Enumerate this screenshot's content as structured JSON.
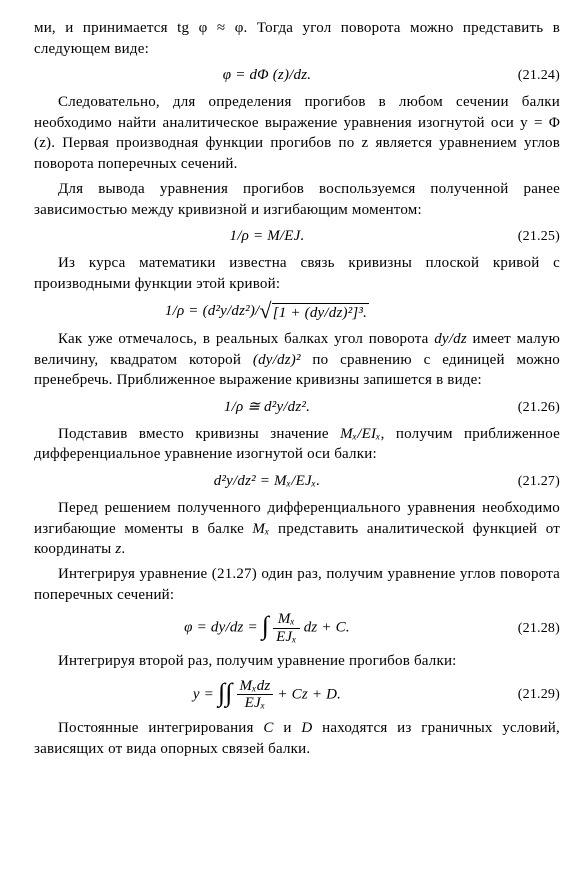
{
  "p1": "ми, и принимается tg φ ≈ φ. Тогда угол поворота можно представить в следующем виде:",
  "eq1": {
    "body": "φ = dΦ (z)/dz.",
    "num": "(21.24)"
  },
  "p2": "Следовательно, для определения прогибов в любом сечении балки необходимо найти аналитическое выражение уравнения изогнутой оси y = Φ (z). Первая производная функции прогибов по z является уравнением углов поворота поперечных сечений.",
  "p3": "Для вывода уравнения прогибов воспользуемся полученной ранее зависимостью между кривизной и изгибающим моментом:",
  "eq2": {
    "body": "1/ρ = M/EJ.",
    "num": "(21.25)"
  },
  "p4": "Из курса математики известна связь кривизны плоской кривой с производными функции этой кривой:",
  "eq3": {
    "lhs": "1/ρ = (d²y/dz²)/",
    "rad": "[1 + (dy/dz)²]³."
  },
  "p5a": "Как уже отмечалось, в реальных балках угол поворота ",
  "p5b": " имеет малую величину, квадратом которой ",
  "p5c": " по сравнению с единицей можно пренебречь. Приближенное выражение кривизны запишется в виде:",
  "dydz": "dy/dz",
  "dydz2": "(dy/dz)²",
  "eq4": {
    "body": "1/ρ ≅ d²y/dz².",
    "num": "(21.26)"
  },
  "p6a": "Подставив вместо кривизны значение ",
  "p6b": ", получим приближенное дифференциальное уравнение изогнутой оси балки:",
  "MxEIx": "Mₓ/EIₓ",
  "eq5": {
    "body": "d²y/dz² = Mₓ/EJₓ.",
    "num": "(21.27)"
  },
  "p7a": "Перед решением полученного дифференциального уравнения необходимо изгибающие моменты в балке ",
  "p7b": " представить аналитической функцией от координаты ",
  "Mx": "Mₓ",
  "z": "z",
  "p8": "Интегрируя уравнение (21.27) один раз, получим уравнение углов поворота поперечных сечений:",
  "eq6": {
    "lhs": "φ = dy/dz = ",
    "frac_num": "Mₓ",
    "frac_den": "EJₓ",
    "rhs": " dz + C.",
    "num": "(21.28)"
  },
  "p9": "Интегрируя второй раз, получим уравнение прогибов балки:",
  "eq7": {
    "lhs": "y = ",
    "frac_num": "Mₓdz",
    "frac_den": "EJₓ",
    "rhs": " + Cz + D.",
    "num": "(21.29)"
  },
  "p10a": "Постоянные интегрирования ",
  "p10b": " и ",
  "p10c": " находятся из граничных условий, зависящих от вида опорных связей балки.",
  "C": "C",
  "D": "D"
}
